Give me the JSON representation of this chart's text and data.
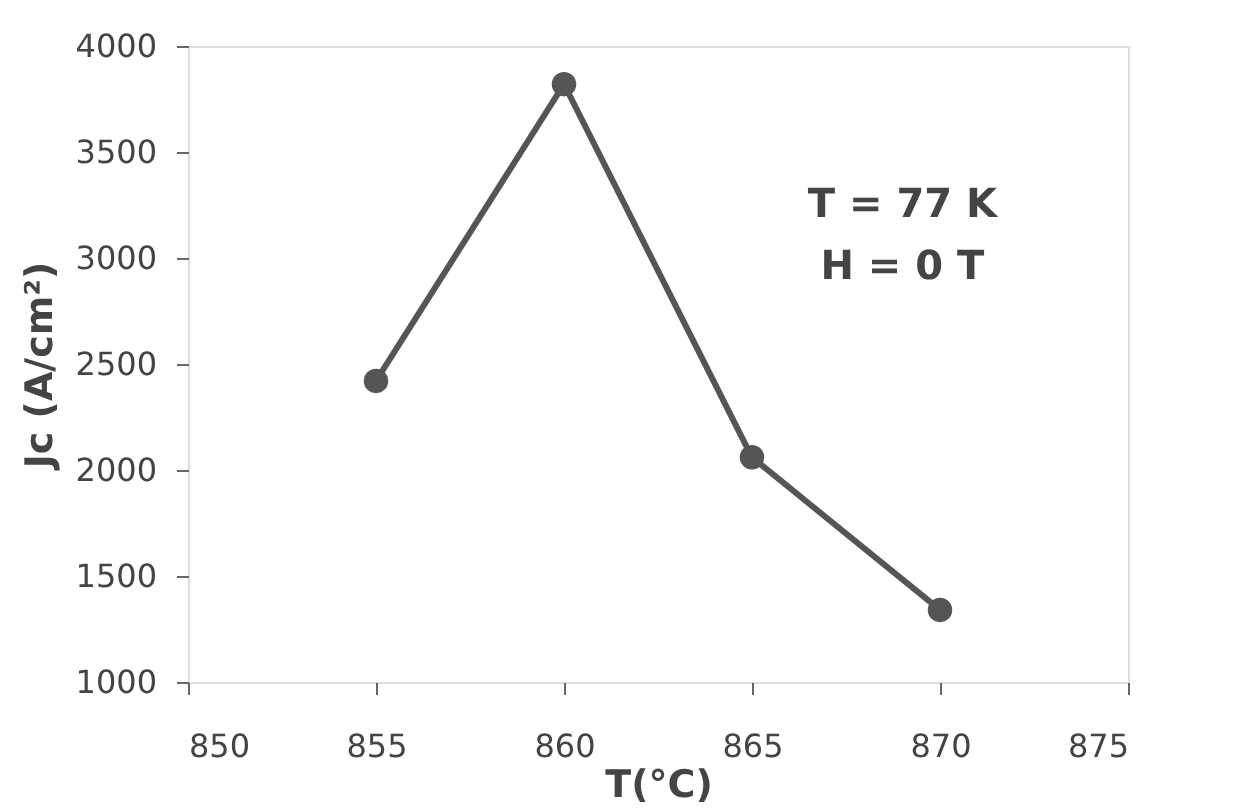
{
  "chart_data": {
    "type": "line",
    "xlabel": "T(°C)",
    "ylabel": "Jc (A/cm²)",
    "x": [
      855,
      860,
      865,
      870
    ],
    "series": [
      {
        "color": "#555555",
        "values": [
          2420,
          3820,
          2060,
          1340
        ]
      }
    ],
    "xlim": [
      850,
      875
    ],
    "xticks": [
      850,
      855,
      860,
      865,
      870,
      875
    ],
    "ylim": [
      1000,
      4000
    ],
    "yticks": [
      1000,
      1500,
      2000,
      2500,
      3000,
      3500,
      4000
    ],
    "marker": "circle",
    "line_style": "solid",
    "grid": false,
    "legend": false,
    "annotations": [
      "T = 77 K",
      "H = 0 T"
    ]
  }
}
